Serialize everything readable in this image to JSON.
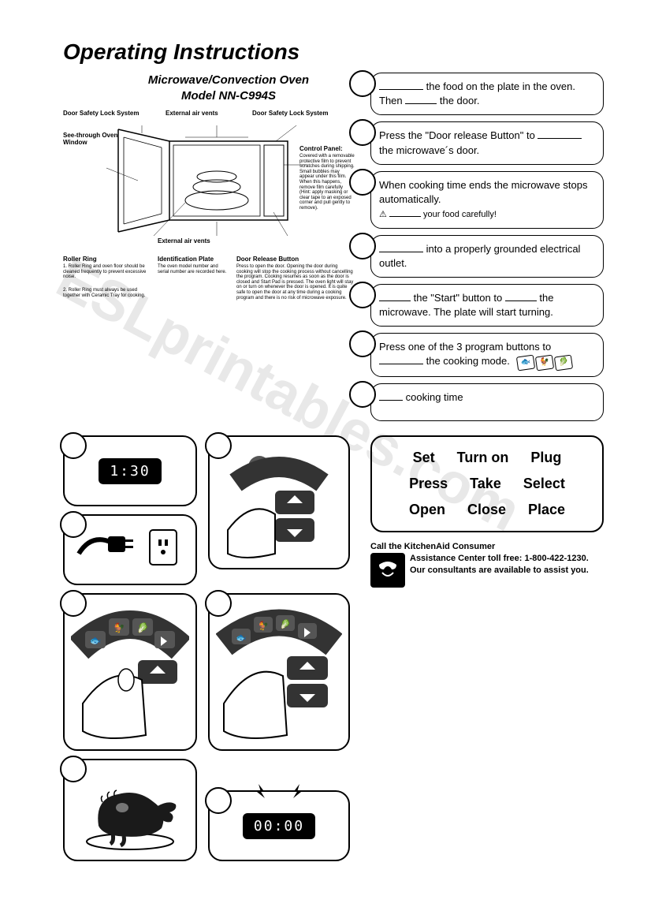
{
  "title": "Operating Instructions",
  "subtitle_line1": "Microwave/Convection Oven",
  "subtitle_line2": "Model NN-C994S",
  "diagram": {
    "labels": {
      "door_safety": "Door Safety Lock System",
      "external_vents": "External air vents",
      "see_through": "See-through Oven Window",
      "control_panel": "Control Panel:",
      "control_panel_text": "Covered with a removable protective film to prevent scratches during shipping. Small bubbles may appear under this film. When this happens, remove film carefully (Hint: apply masking or clear tape to an exposed corner and pull gently to remove).",
      "roller_ring": "Roller Ring",
      "roller_ring_text1": "1. Roller Ring and oven floor should be cleaned frequently to prevent excessive noise.",
      "roller_ring_text2": "2. Roller Ring must always be used together with Ceramic Tray for cooking.",
      "ident_plate": "Identification Plate",
      "ident_plate_text": "The oven model number and serial number are recorded here.",
      "door_release": "Door Release Button",
      "door_release_text": "Press to open the door. Opening the door during cooking will stop the cooking process without cancelling the program. Cooking resumes as soon as the door is closed and Start Pad is pressed. The oven light will stay on or turn on whenever the door is opened. It is quite safe to open the door at any time during a cooking program and there is no risk of microwave exposure."
    }
  },
  "timers": {
    "t1": "1:30",
    "t2": "00:00"
  },
  "steps": [
    {
      "html": "<span class='blank'></span> the food on the plate in the oven. Then <span class='blank sm'></span> the door."
    },
    {
      "html": "Press the \"Door release Button\" to <span class='blank'></span> the microwave´s door."
    },
    {
      "html": "When cooking time ends the microwave stops automatically.<br><span class='warn'>⚠ <span class='blank sm'></span> your food carefully!</span>"
    },
    {
      "html": "<span class='blank'></span> into a properly grounded electrical outlet."
    },
    {
      "html": "<span class='blank sm'></span> the \"Start\" button to <span class='blank sm'></span> the microwave. The plate will start turning."
    },
    {
      "html": "Press one of the 3 program buttons to <span class='blank'></span> the cooking mode. <span class='mini-icons'><span class='mini-icon'>🐟</span><span class='mini-icon'>🐓</span><span class='mini-icon'>🥬</span></span>"
    },
    {
      "html": "<span class='blank xs'></span> cooking time"
    }
  ],
  "wordbank": [
    "Set",
    "Turn on",
    "Plug",
    "Press",
    "Take",
    "Select",
    "Open",
    "Close",
    "Place"
  ],
  "footer": {
    "line1": "Call the KitchenAid Consumer",
    "line2": "Assistance Center toll free: 1-800-422-1230. Our consultants are available to assist you."
  },
  "colors": {
    "text": "#000000",
    "bg": "#ffffff",
    "watermark": "#e8e8e8"
  }
}
